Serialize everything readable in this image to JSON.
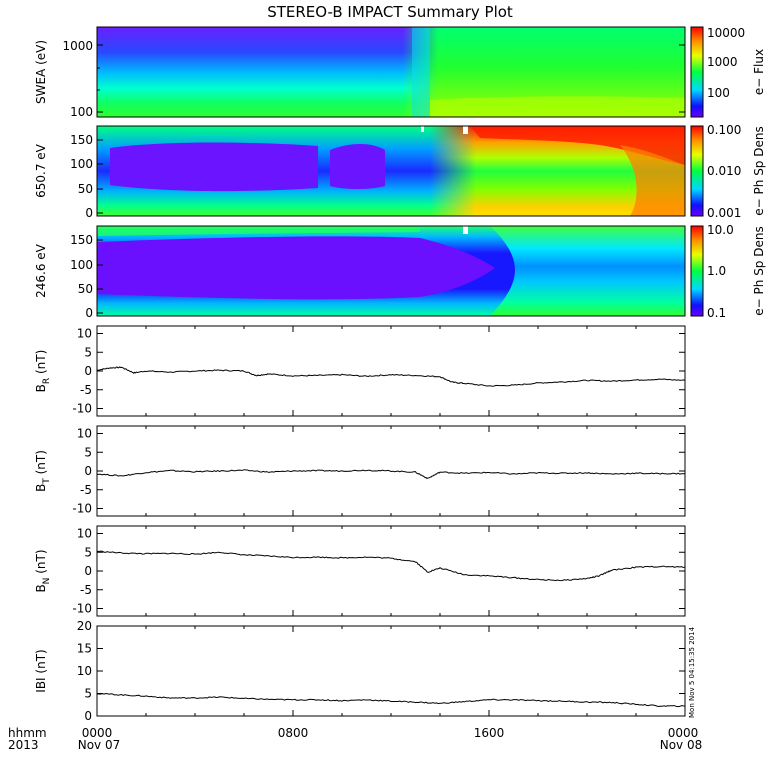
{
  "title": "STEREO-B IMPACT Summary Plot",
  "footer": {
    "time_format": "hhmm",
    "year": "2013",
    "x_ticks": [
      {
        "time": "0000",
        "date": "Nov 07"
      },
      {
        "time": "0800",
        "date": ""
      },
      {
        "time": "1600",
        "date": ""
      },
      {
        "time": "0000",
        "date": "Nov 08"
      }
    ],
    "timestamp": "Mon Nov  5 04:15:35 2014"
  },
  "spectrograms": [
    {
      "ylabel": "SWEA (eV)",
      "yscale": "log",
      "yticks": [
        "100",
        "1000"
      ],
      "colorbar_label": "e− Flux",
      "colorbar_ticks": [
        "10000",
        "1000",
        "100"
      ]
    },
    {
      "ylabel": "650.7 eV",
      "yscale": "linear",
      "yticks": [
        "0",
        "50",
        "100",
        "150"
      ],
      "colorbar_label": "e− Ph Sp Dens",
      "colorbar_ticks": [
        "0.100",
        "0.010",
        "0.001"
      ]
    },
    {
      "ylabel": "246.6 eV",
      "yscale": "linear",
      "yticks": [
        "0",
        "50",
        "100",
        "150"
      ],
      "colorbar_label": "e− Ph Sp Dens",
      "colorbar_ticks": [
        "10.0",
        "1.0",
        "0.1"
      ]
    }
  ],
  "chart_data": [
    {
      "type": "line",
      "ylabel_main": "B",
      "ylabel_sub": "R",
      "ylabel_unit": " (nT)",
      "ylim": [
        -12,
        12
      ],
      "yticks": [
        "10",
        "5",
        "0",
        "-5",
        "-10"
      ],
      "x_hours": [
        0,
        0.5,
        1,
        1.5,
        2,
        3,
        4,
        5,
        6,
        6.5,
        7,
        8,
        9,
        10,
        11,
        12,
        13,
        14,
        14.5,
        15,
        16,
        17,
        18,
        19,
        20,
        21,
        22,
        23,
        24
      ],
      "values": [
        0.2,
        0.8,
        1.0,
        -0.5,
        0.0,
        -0.3,
        0.0,
        0.2,
        0.0,
        -1.2,
        -0.8,
        -1.3,
        -1.2,
        -1.0,
        -1.4,
        -1.0,
        -1.2,
        -1.5,
        -3.0,
        -3.3,
        -4.0,
        -3.8,
        -3.2,
        -2.9,
        -2.5,
        -2.7,
        -2.4,
        -2.2,
        -2.5
      ]
    },
    {
      "type": "line",
      "ylabel_main": "B",
      "ylabel_sub": "T",
      "ylabel_unit": " (nT)",
      "ylim": [
        -12,
        12
      ],
      "yticks": [
        "10",
        "5",
        "0",
        "-5",
        "-10"
      ],
      "x_hours": [
        0,
        1,
        2,
        3,
        4,
        5,
        6,
        7,
        8,
        9,
        10,
        11,
        12,
        13,
        13.5,
        14,
        15,
        16,
        17,
        18,
        19,
        20,
        21,
        22,
        23,
        24
      ],
      "values": [
        -0.8,
        -1.3,
        -0.4,
        0.1,
        -0.2,
        0.0,
        0.2,
        -0.3,
        0.0,
        0.1,
        0.0,
        0.2,
        0.0,
        -0.3,
        -2.0,
        -0.3,
        -0.6,
        -0.4,
        -0.8,
        -0.5,
        -0.6,
        -0.5,
        -0.8,
        -0.6,
        -0.7,
        -0.7
      ]
    },
    {
      "type": "line",
      "ylabel_main": "B",
      "ylabel_sub": "N",
      "ylabel_unit": " (nT)",
      "ylim": [
        -12,
        12
      ],
      "yticks": [
        "10",
        "5",
        "0",
        "-5",
        "-10"
      ],
      "x_hours": [
        0,
        1,
        2,
        3,
        4,
        5,
        6,
        7,
        8,
        9,
        10,
        11,
        12,
        13,
        13.5,
        14,
        15,
        16,
        17,
        18,
        19,
        20,
        20.5,
        21,
        22,
        23,
        24
      ],
      "values": [
        5.3,
        4.8,
        4.6,
        4.7,
        4.5,
        5.0,
        4.3,
        4.0,
        3.6,
        3.7,
        3.5,
        3.7,
        3.4,
        2.5,
        -0.3,
        0.8,
        -1.0,
        -1.3,
        -1.8,
        -2.3,
        -2.5,
        -2.0,
        -1.3,
        0.2,
        1.0,
        1.2,
        1.0
      ]
    },
    {
      "type": "line",
      "ylabel_main": "IBI",
      "ylabel_sub": "",
      "ylabel_unit": " (nT)",
      "ylim": [
        0,
        20
      ],
      "yticks": [
        "20",
        "15",
        "10",
        "5",
        "0"
      ],
      "x_hours": [
        0,
        1,
        2,
        3,
        4,
        5,
        6,
        7,
        8,
        9,
        10,
        11,
        12,
        13,
        14,
        15,
        16,
        17,
        18,
        19,
        20,
        21,
        22,
        23,
        24
      ],
      "values": [
        5.0,
        4.7,
        4.4,
        4.0,
        4.0,
        4.2,
        3.9,
        3.7,
        3.6,
        3.6,
        3.4,
        3.6,
        3.3,
        3.1,
        2.8,
        3.2,
        3.6,
        3.6,
        3.4,
        3.3,
        3.1,
        3.0,
        2.6,
        2.2,
        2.2
      ]
    }
  ]
}
